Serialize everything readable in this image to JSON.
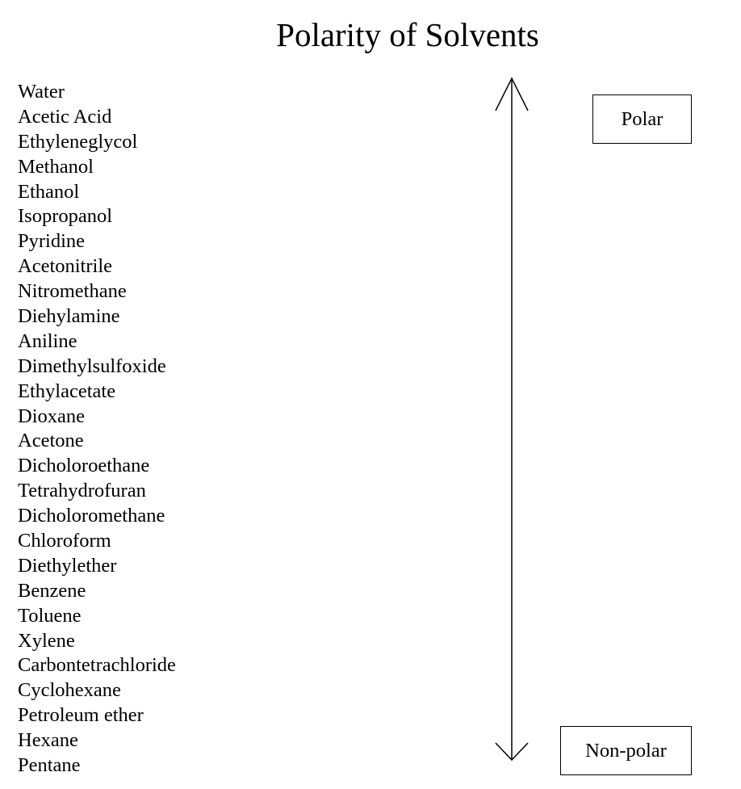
{
  "title": "Polarity of Solvents",
  "solvents": [
    "Water",
    "Acetic Acid",
    "Ethyleneglycol",
    "Methanol",
    "Ethanol",
    "Isopropanol",
    "Pyridine",
    "Acetonitrile",
    "Nitromethane",
    "Diehylamine",
    "Aniline",
    "Dimethylsulfoxide",
    "Ethylacetate",
    "Dioxane",
    "Acetone",
    "Dicholoroethane",
    "Tetrahydrofuran",
    "Dicholoromethane",
    "Chloroform",
    "Diethylether",
    "Benzene",
    "Toluene",
    "Xylene",
    "Carbontetrachloride",
    "Cyclohexane",
    "Petroleum ether",
    "Hexane",
    "Pentane"
  ],
  "labels": {
    "top": "Polar",
    "bottom": "Non-polar"
  }
}
